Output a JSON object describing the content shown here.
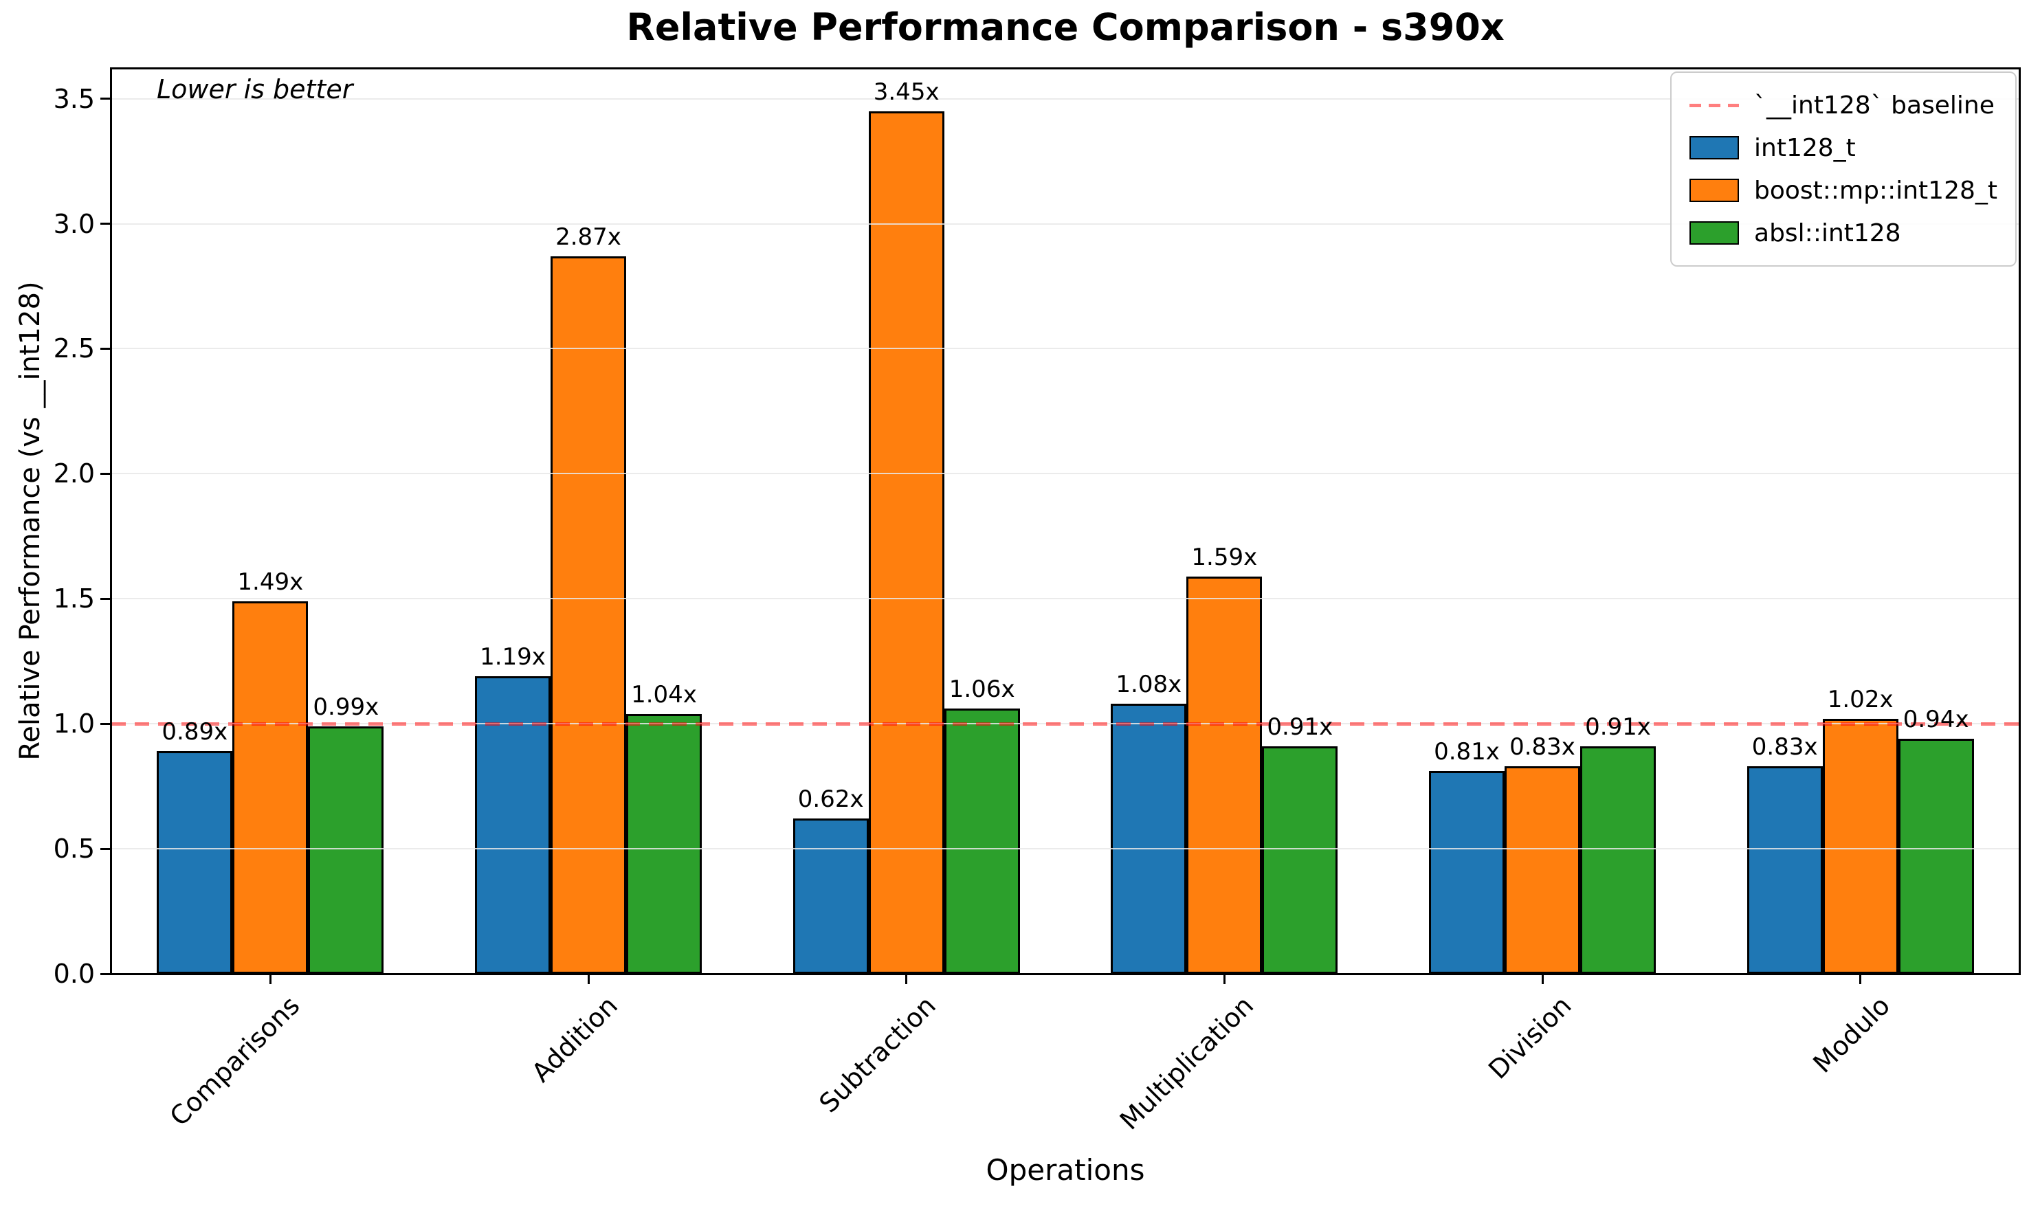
{
  "figure": {
    "title": "Relative Performance Comparison - s390x",
    "annotation": "Lower is better",
    "background": "#ffffff"
  },
  "axes": {
    "x_label": "Operations",
    "y_label": "Relative Performance (vs __int128)",
    "y_tick_labels": [
      "0.0",
      "0.5",
      "1.0",
      "1.5",
      "2.0",
      "2.5",
      "3.0",
      "3.5"
    ],
    "y_tick_values": [
      0.0,
      0.5,
      1.0,
      1.5,
      2.0,
      2.5,
      3.0,
      3.5
    ],
    "grid_color": "#e8e8e8",
    "spine_color": "#000000"
  },
  "chart_data": {
    "type": "bar",
    "title": "Relative Performance Comparison - s390x",
    "xlabel": "Operations",
    "ylabel": "Relative Performance (vs __int128)",
    "ylim": [
      0,
      3.62
    ],
    "grid": true,
    "legend_position": "upper right",
    "annotation": "Lower is better",
    "bar_edge_color": "#000000",
    "categories": [
      "Comparisons",
      "Addition",
      "Subtraction",
      "Multiplication",
      "Division",
      "Modulo"
    ],
    "series": [
      {
        "name": "int128_t",
        "color": "#1f77b4",
        "values": [
          0.89,
          1.19,
          0.62,
          1.08,
          0.81,
          0.83
        ],
        "labels": [
          "0.89x",
          "1.19x",
          "0.62x",
          "1.08x",
          "0.81x",
          "0.83x"
        ]
      },
      {
        "name": "boost::mp::int128_t",
        "color": "#ff7f0e",
        "values": [
          1.49,
          2.87,
          3.45,
          1.59,
          0.83,
          1.02
        ],
        "labels": [
          "1.49x",
          "2.87x",
          "3.45x",
          "1.59x",
          "0.83x",
          "1.02x"
        ]
      },
      {
        "name": "absl::int128",
        "color": "#2ca02c",
        "values": [
          0.99,
          1.04,
          1.06,
          0.91,
          0.91,
          0.94
        ],
        "labels": [
          "0.99x",
          "1.04x",
          "1.06x",
          "0.91x",
          "0.91x",
          "0.94x"
        ]
      }
    ],
    "baseline": {
      "value": 1.0,
      "label": "`__int128` baseline",
      "color": "rgba(255,0,0,0.5)"
    }
  },
  "legend": {
    "entries": [
      {
        "label": "`__int128` baseline"
      },
      {
        "label": "int128_t"
      },
      {
        "label": "boost::mp::int128_t"
      },
      {
        "label": "absl::int128"
      }
    ]
  }
}
